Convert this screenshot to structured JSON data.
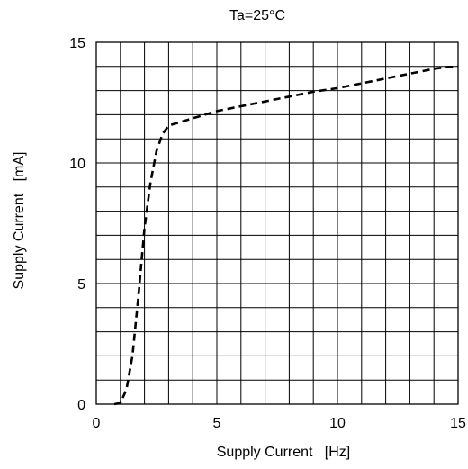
{
  "chart_data": {
    "type": "line",
    "title": "Ta=25°C",
    "xlabel": "Supply Current   [Hz]",
    "ylabel": "Supply Current   [mA]",
    "xlim": [
      0,
      15
    ],
    "ylim": [
      0,
      15
    ],
    "x_ticks": [
      0,
      5,
      10,
      15
    ],
    "y_ticks": [
      0,
      5,
      10,
      15
    ],
    "x_tick_labels": [
      "0",
      "5",
      "10",
      "15"
    ],
    "y_tick_labels": [
      "0",
      "5",
      "10",
      "15"
    ],
    "grid": true,
    "grid_step": 1,
    "series": [
      {
        "line_style": "dashed",
        "color": "#000000",
        "x": [
          0.75,
          1.0,
          1.25,
          1.5,
          1.75,
          2.0,
          2.25,
          2.5,
          2.75,
          3.0,
          4.0,
          5.0,
          6.0,
          7.0,
          8.0,
          9.0,
          10.0,
          11.0,
          12.0,
          13.0,
          13.5,
          14.0,
          14.5,
          15.0
        ],
        "y": [
          0.0,
          0.05,
          0.6,
          2.0,
          4.5,
          7.3,
          9.2,
          10.5,
          11.2,
          11.55,
          11.85,
          12.15,
          12.35,
          12.55,
          12.75,
          12.95,
          13.1,
          13.3,
          13.5,
          13.7,
          13.8,
          13.9,
          13.97,
          14.0
        ]
      }
    ]
  }
}
